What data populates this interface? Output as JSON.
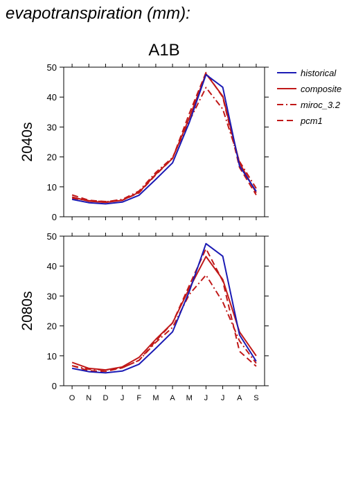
{
  "figure": {
    "title": "evapotranspiration (mm):",
    "scenario": "A1B"
  },
  "legend": {
    "placement": "right",
    "items": [
      {
        "label": "historical",
        "color": "#1a1ab4",
        "dash": "solid"
      },
      {
        "label": "composite",
        "color": "#c01818",
        "dash": "solid"
      },
      {
        "label": "miroc_3.2",
        "color": "#c01818",
        "dash": "dashdot"
      },
      {
        "label": "pcm1",
        "color": "#c01818",
        "dash": "dashed"
      }
    ]
  },
  "chart_data": [
    {
      "type": "line",
      "ylabel": "2040s",
      "categories": [
        "O",
        "N",
        "D",
        "J",
        "F",
        "M",
        "A",
        "M",
        "J",
        "J",
        "A",
        "S"
      ],
      "ylim": [
        0,
        50
      ],
      "yticks": [
        0,
        10,
        20,
        30,
        40,
        50
      ],
      "series": [
        {
          "name": "historical",
          "values": [
            5.8,
            4.7,
            4.3,
            4.9,
            7.2,
            12.5,
            18.0,
            31.5,
            47.5,
            43.3,
            17.0,
            8.5
          ]
        },
        {
          "name": "composite",
          "values": [
            6.6,
            5.2,
            4.8,
            5.5,
            8.2,
            14.2,
            19.5,
            33.0,
            47.8,
            40.3,
            18.0,
            8.0
          ]
        },
        {
          "name": "miroc_3.2",
          "values": [
            6.2,
            5.4,
            5.0,
            5.8,
            8.6,
            14.8,
            19.8,
            32.0,
            43.2,
            36.0,
            18.5,
            9.5
          ]
        },
        {
          "name": "pcm1",
          "values": [
            7.3,
            5.5,
            5.1,
            5.5,
            8.0,
            14.0,
            19.5,
            34.5,
            48.2,
            40.0,
            16.5,
            7.3
          ]
        }
      ]
    },
    {
      "type": "line",
      "ylabel": "2080s",
      "categories": [
        "O",
        "N",
        "D",
        "J",
        "F",
        "M",
        "A",
        "M",
        "J",
        "J",
        "A",
        "S"
      ],
      "ylim": [
        0,
        50
      ],
      "yticks": [
        0,
        10,
        20,
        30,
        40,
        50
      ],
      "series": [
        {
          "name": "historical",
          "values": [
            5.8,
            4.7,
            4.3,
            4.9,
            7.2,
            12.5,
            18.0,
            31.5,
            47.5,
            43.3,
            17.0,
            8.2
          ]
        },
        {
          "name": "composite",
          "values": [
            7.8,
            5.8,
            5.3,
            6.3,
            9.5,
            15.5,
            21.0,
            32.5,
            43.2,
            35.5,
            18.0,
            10.0
          ]
        },
        {
          "name": "miroc_3.2",
          "values": [
            6.7,
            5.5,
            5.2,
            6.0,
            8.5,
            14.5,
            19.5,
            30.5,
            37.0,
            28.0,
            15.0,
            7.5
          ]
        },
        {
          "name": "pcm1",
          "values": [
            6.7,
            5.0,
            4.8,
            6.0,
            8.5,
            15.0,
            21.0,
            33.5,
            45.8,
            35.0,
            11.5,
            6.5
          ]
        }
      ]
    }
  ]
}
